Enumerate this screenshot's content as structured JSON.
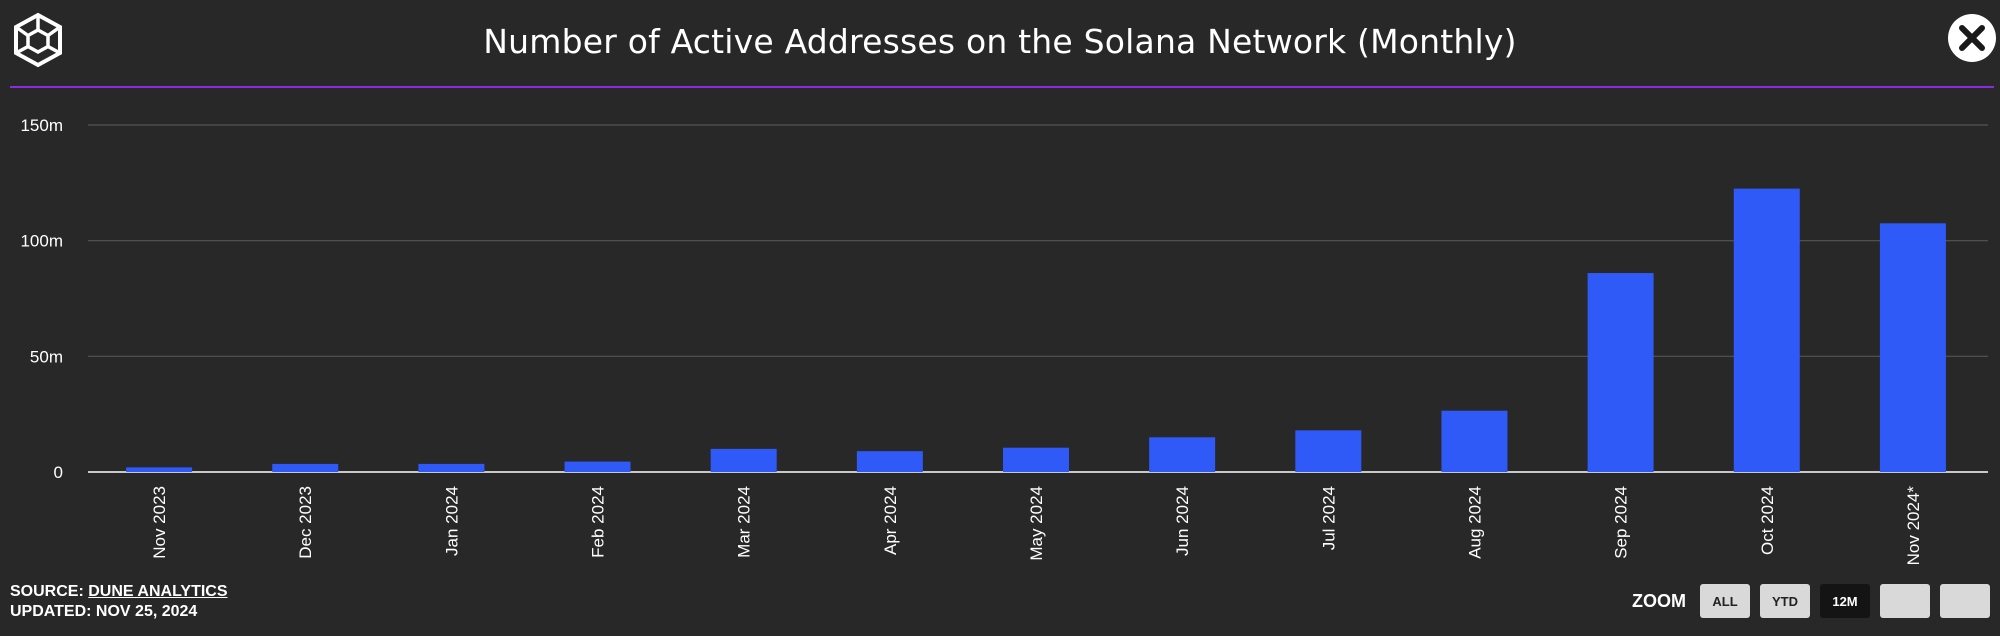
{
  "header": {
    "title": "Number of Active Addresses on the Solana Network (Monthly)",
    "logo_icon": "cube-logo-icon",
    "close_icon": "close-icon"
  },
  "chart_data": {
    "type": "bar",
    "title": "Number of Active Addresses on the Solana Network (Monthly)",
    "categories": [
      "Nov 2023",
      "Dec 2023",
      "Jan 2024",
      "Feb 2024",
      "Mar 2024",
      "Apr 2024",
      "May 2024",
      "Jun 2024",
      "Jul 2024",
      "Aug 2024",
      "Sep 2024",
      "Oct 2024",
      "Nov 2024*"
    ],
    "values": [
      2,
      3.5,
      3.5,
      4.5,
      10,
      9,
      10.5,
      15,
      18,
      26.5,
      86,
      122.5,
      107.5
    ],
    "unit": "m",
    "ylim": [
      0,
      150
    ],
    "yticks": [
      "0",
      "50m",
      "100m",
      "150m"
    ],
    "ytick_values": [
      0,
      50,
      100,
      150
    ],
    "xlabel": "",
    "ylabel": "",
    "grid": true,
    "bar_color": "#2f5af7"
  },
  "footer": {
    "source_label": "SOURCE:",
    "source_link": "DUNE ANALYTICS",
    "updated": "UPDATED: NOV 25, 2024"
  },
  "zoom": {
    "label": "ZOOM",
    "buttons": [
      "ALL",
      "YTD",
      "12M",
      "",
      ""
    ],
    "active": "12M"
  },
  "colors": {
    "background": "#282828",
    "accent": "#8a2be2",
    "bar": "#2f5af7"
  }
}
